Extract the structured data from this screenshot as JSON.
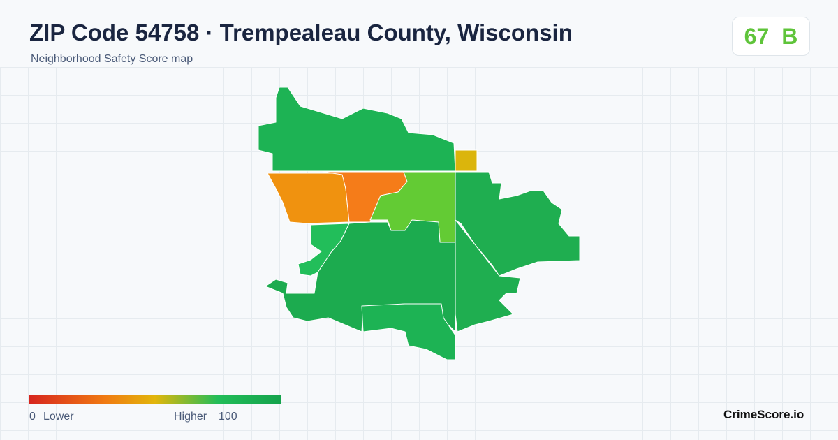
{
  "header": {
    "title": "ZIP Code 54758 · Trempealeau County, Wisconsin",
    "subtitle": "Neighborhood Safety Score map",
    "score": 67,
    "grade": "B"
  },
  "legend": {
    "min": 0,
    "low_label": "Lower",
    "high_label": "Higher",
    "max": 100
  },
  "footer": {
    "brand": "CrimeScore.io"
  }
}
